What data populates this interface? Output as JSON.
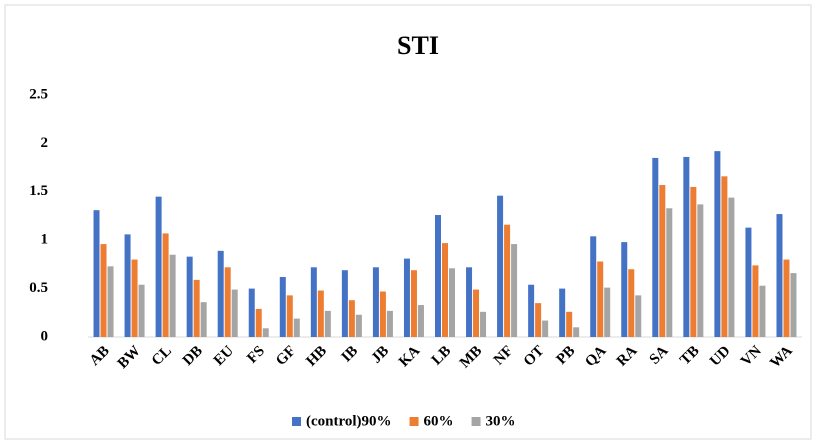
{
  "chart_data": {
    "type": "bar",
    "title": "STI",
    "categories": [
      "AB",
      "BW",
      "CL",
      "DB",
      "EU",
      "FS",
      "GF",
      "HB",
      "IB",
      "JB",
      "KA",
      "LB",
      "MB",
      "NF",
      "OT",
      "PB",
      "QA",
      "RA",
      "SA",
      "TB",
      "UD",
      "VN",
      "WA"
    ],
    "series": [
      {
        "name": "(control)90%",
        "color": "#4472c4",
        "values": [
          1.31,
          1.06,
          1.45,
          0.83,
          0.89,
          0.5,
          0.62,
          0.72,
          0.69,
          0.72,
          0.81,
          1.26,
          0.72,
          1.46,
          0.54,
          0.5,
          1.04,
          0.98,
          1.85,
          1.86,
          1.92,
          1.13,
          1.27
        ]
      },
      {
        "name": "60%",
        "color": "#ed7d31",
        "values": [
          0.96,
          0.8,
          1.07,
          0.59,
          0.72,
          0.29,
          0.43,
          0.48,
          0.38,
          0.47,
          0.69,
          0.97,
          0.49,
          1.16,
          0.35,
          0.26,
          0.78,
          0.7,
          1.57,
          1.55,
          1.66,
          0.74,
          0.8
        ]
      },
      {
        "name": "30%",
        "color": "#a5a5a5",
        "values": [
          0.73,
          0.54,
          0.85,
          0.36,
          0.49,
          0.09,
          0.19,
          0.27,
          0.23,
          0.27,
          0.33,
          0.71,
          0.26,
          0.96,
          0.17,
          0.1,
          0.51,
          0.43,
          1.33,
          1.37,
          1.44,
          0.53,
          0.66
        ]
      }
    ],
    "ylim": [
      0,
      2.5
    ],
    "yticks": [
      0,
      0.5,
      1,
      1.5,
      2,
      2.5
    ],
    "grid": false,
    "legend": "bottom"
  }
}
